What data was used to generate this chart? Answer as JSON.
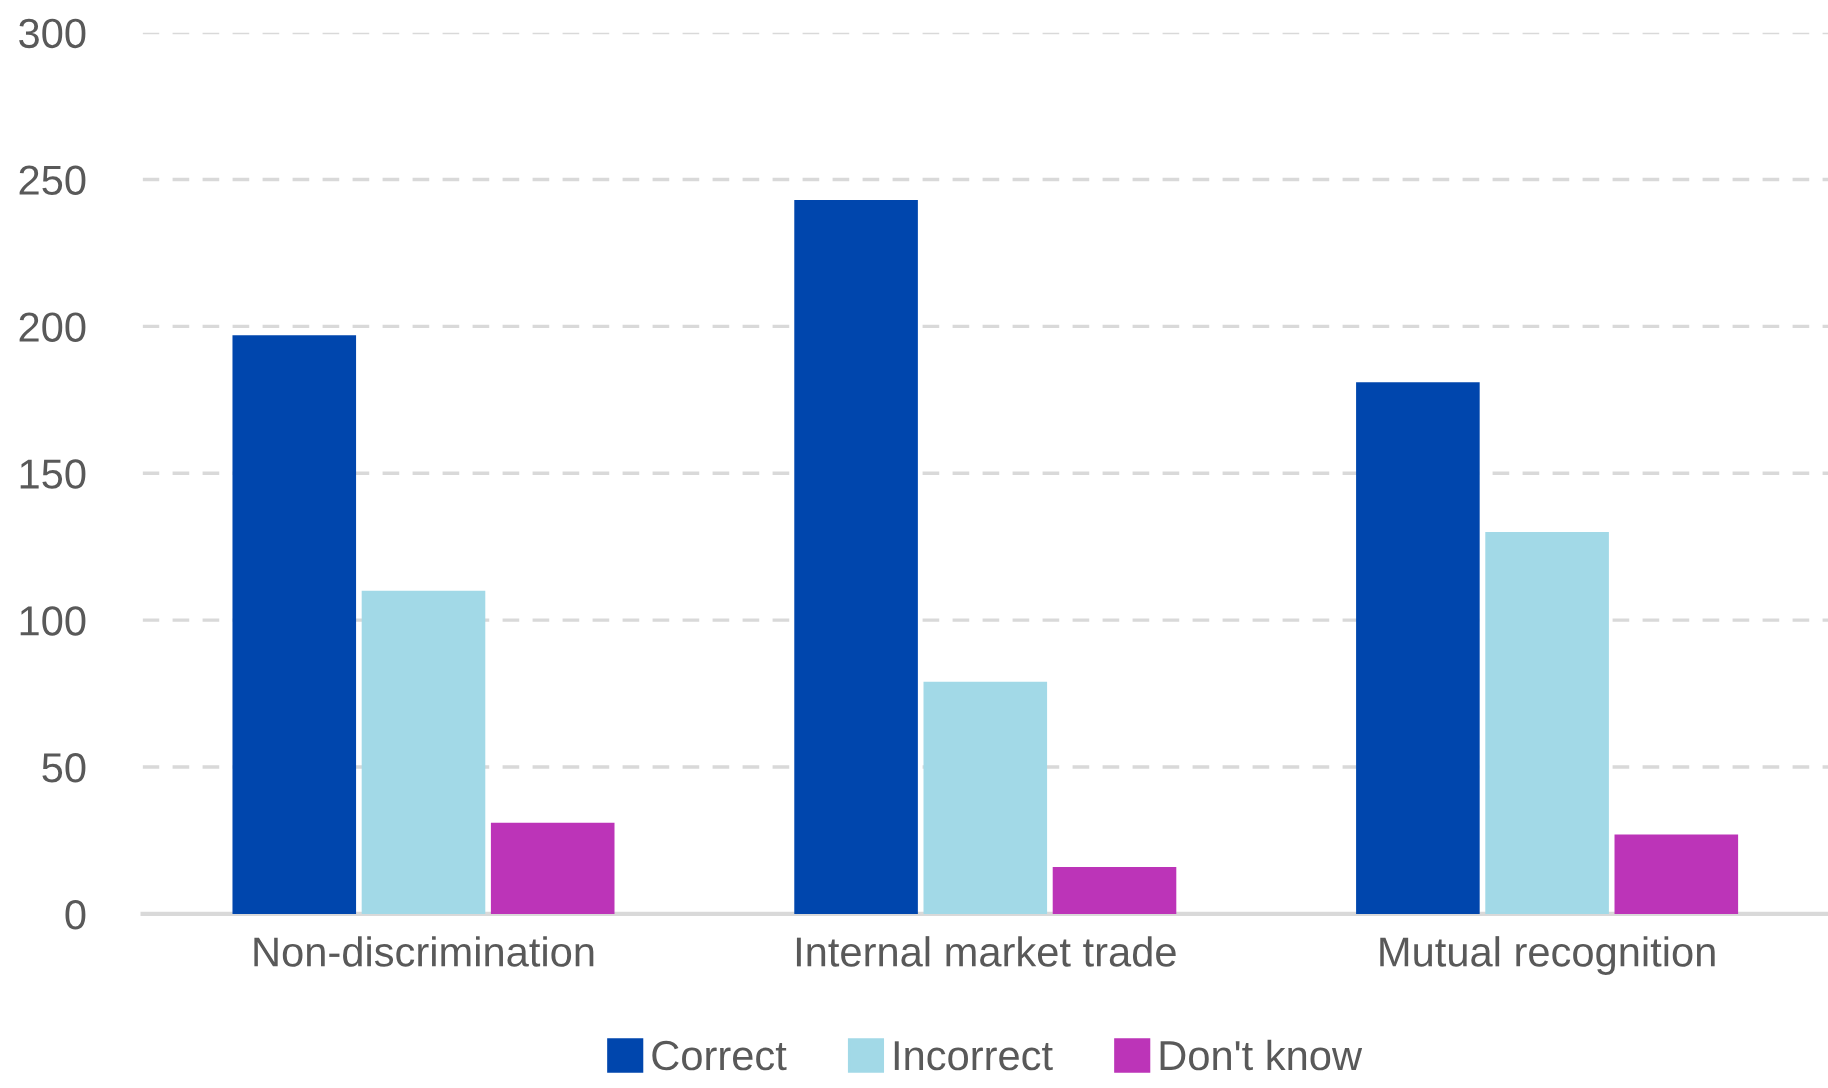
{
  "chart_data": {
    "type": "bar",
    "categories": [
      "Non-discrimination",
      "Internal market trade",
      "Mutual recognition"
    ],
    "series": [
      {
        "name": "Correct",
        "color": "#0046ad",
        "values": [
          197,
          243,
          181
        ]
      },
      {
        "name": "Incorrect",
        "color": "#a2d9e7",
        "values": [
          110,
          79,
          130
        ]
      },
      {
        "name": "Don't know",
        "color": "#bc34b8",
        "values": [
          31,
          16,
          27
        ]
      }
    ],
    "ylim": [
      0,
      300
    ],
    "yticks": [
      0,
      50,
      100,
      150,
      200,
      250,
      300
    ],
    "grid": "y",
    "legend": "bottom"
  }
}
